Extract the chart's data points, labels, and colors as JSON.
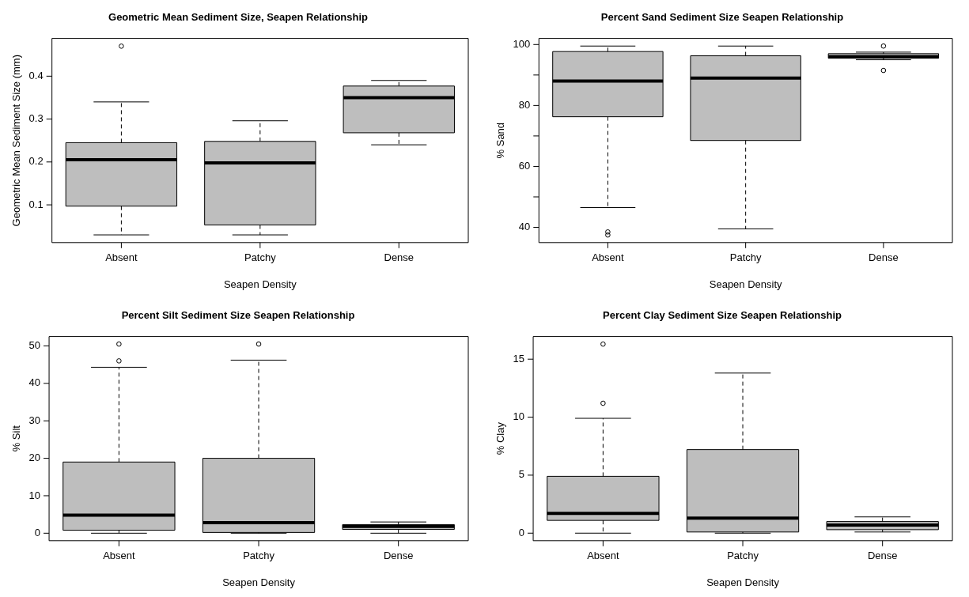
{
  "chart_data": [
    {
      "type": "box",
      "title": "Geometric Mean Sediment Size, Seapen Relationship",
      "xlabel": "Seapen Density",
      "ylabel": "Geometric Mean Sediment Size (mm)",
      "categories": [
        "Absent",
        "Patchy",
        "Dense"
      ],
      "ylim": [
        0.012,
        0.488
      ],
      "yticks": [
        0.1,
        0.2,
        0.3,
        0.4
      ],
      "grid": false,
      "series": [
        {
          "color": "#bebebe",
          "boxes": [
            {
              "low": 0.03,
              "q1": 0.097,
              "median": 0.205,
              "q3": 0.245,
              "high": 0.34,
              "outliers": [
                0.47
              ]
            },
            {
              "low": 0.03,
              "q1": 0.053,
              "median": 0.198,
              "q3": 0.248,
              "high": 0.296
            },
            {
              "low": 0.24,
              "q1": 0.268,
              "median": 0.35,
              "q3": 0.377,
              "high": 0.39
            }
          ]
        }
      ]
    },
    {
      "type": "box",
      "title": "Percent Sand Sediment Size Seapen Relationship",
      "xlabel": "Seapen Density",
      "ylabel": "% Sand",
      "categories": [
        "Absent",
        "Patchy",
        "Dense"
      ],
      "ylim": [
        35,
        102
      ],
      "yticks": [
        40,
        {
          "value": 50,
          "label": null
        },
        60,
        {
          "value": 70,
          "label": null
        },
        80,
        {
          "value": 90,
          "label": null
        },
        100
      ],
      "grid": false,
      "series": [
        {
          "color": "#bebebe",
          "boxes": [
            {
              "low": 46.5,
              "q1": 76.3,
              "median": 88,
              "q3": 97.7,
              "high": 99.5,
              "outliers": [
                37.5,
                38.5
              ]
            },
            {
              "low": 39.5,
              "q1": 68.5,
              "median": 89,
              "q3": 96.3,
              "high": 99.5
            },
            {
              "low": 95,
              "q1": 95.5,
              "median": 96,
              "q3": 97,
              "high": 97.5,
              "outliers": [
                99.5,
                91.5
              ]
            }
          ]
        }
      ]
    },
    {
      "type": "box",
      "title": "Percent Silt Sediment Size Seapen Relationship",
      "xlabel": "Seapen Density",
      "ylabel": "% Silt",
      "categories": [
        "Absent",
        "Patchy",
        "Dense"
      ],
      "ylim": [
        -2,
        52.5
      ],
      "yticks": [
        0,
        10,
        20,
        30,
        40,
        50
      ],
      "grid": false,
      "series": [
        {
          "color": "#bebebe",
          "boxes": [
            {
              "low": 0,
              "q1": 0.8,
              "median": 4.8,
              "q3": 19,
              "high": 44.3,
              "outliers": [
                46,
                50.5
              ]
            },
            {
              "low": 0,
              "q1": 0.2,
              "median": 2.8,
              "q3": 20,
              "high": 46.2,
              "outliers": [
                50.5
              ]
            },
            {
              "low": 0,
              "q1": 1,
              "median": 1.8,
              "q3": 2.3,
              "high": 3
            }
          ]
        }
      ]
    },
    {
      "type": "box",
      "title": "Percent Clay Sediment Size Seapen Relationship",
      "xlabel": "Seapen Density",
      "ylabel": "% Clay",
      "categories": [
        "Absent",
        "Patchy",
        "Dense"
      ],
      "ylim": [
        -0.65,
        16.95
      ],
      "yticks": [
        0,
        5,
        10,
        15
      ],
      "grid": false,
      "series": [
        {
          "color": "#bebebe",
          "boxes": [
            {
              "low": 0,
              "q1": 1.1,
              "median": 1.7,
              "q3": 4.9,
              "high": 9.9,
              "outliers": [
                11.2,
                16.3
              ]
            },
            {
              "low": 0,
              "q1": 0.1,
              "median": 1.3,
              "q3": 7.2,
              "high": 13.8
            },
            {
              "low": 0.1,
              "q1": 0.3,
              "median": 0.7,
              "q3": 1,
              "high": 1.4
            }
          ]
        }
      ]
    }
  ]
}
